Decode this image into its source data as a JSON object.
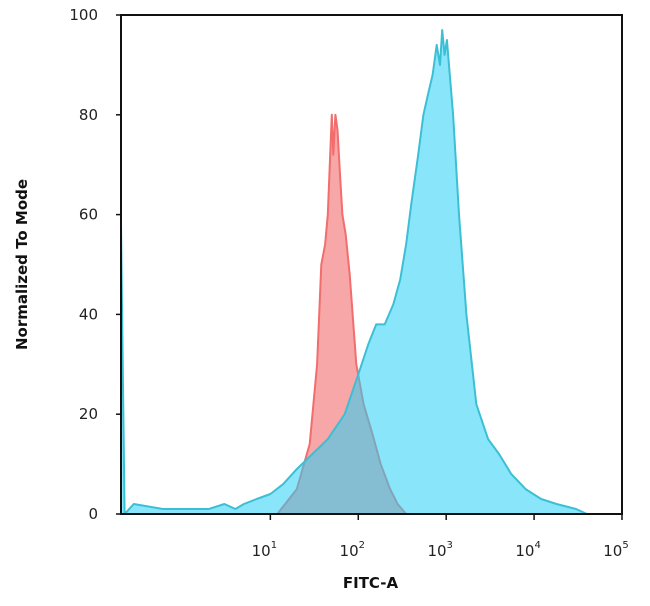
{
  "chart_data": {
    "type": "area",
    "title": "",
    "xlabel": "FITC-A",
    "ylabel": "Normalized To Mode",
    "x_scale": "log",
    "xlim": [
      0.2,
      100000
    ],
    "ylim": [
      0,
      100
    ],
    "x_ticks": [
      {
        "value": 10,
        "base": "10",
        "exp": "1"
      },
      {
        "value": 100,
        "base": "10",
        "exp": "2"
      },
      {
        "value": 1000,
        "base": "10",
        "exp": "3"
      },
      {
        "value": 10000,
        "base": "10",
        "exp": "4"
      },
      {
        "value": 100000,
        "base": "10",
        "exp": "5"
      }
    ],
    "y_ticks": [
      0,
      20,
      40,
      60,
      80,
      100
    ],
    "grid": false,
    "series": [
      {
        "color": "#f26d6d",
        "fill": "rgba(242,120,120,0.65)",
        "x": [
          12,
          20,
          28,
          34,
          38,
          42,
          45,
          48,
          50,
          52,
          55,
          58,
          62,
          66,
          72,
          80,
          95,
          115,
          145,
          180,
          230,
          280,
          350
        ],
        "y": [
          0,
          5,
          14,
          30,
          50,
          54,
          60,
          72,
          80,
          72,
          80,
          77,
          68,
          60,
          56,
          48,
          30,
          22,
          16,
          10,
          5,
          2,
          0
        ]
      },
      {
        "color": "#3cbfd4",
        "fill": "rgba(40,210,245,0.55)",
        "x": [
          0.2,
          0.22,
          0.28,
          0.6,
          1,
          2,
          3,
          4,
          5,
          7,
          10,
          14,
          20,
          30,
          45,
          70,
          100,
          130,
          160,
          200,
          250,
          300,
          350,
          400,
          480,
          550,
          620,
          700,
          780,
          850,
          900,
          960,
          1020,
          1100,
          1200,
          1400,
          1700,
          2200,
          3000,
          4000,
          5500,
          8000,
          12000,
          18000,
          30000,
          40000
        ],
        "y": [
          58,
          0,
          2,
          1,
          1,
          1,
          2,
          1,
          2,
          3,
          4,
          6,
          9,
          12,
          15,
          20,
          28,
          34,
          38,
          38,
          42,
          47,
          54,
          62,
          72,
          80,
          84,
          88,
          94,
          90,
          97,
          92,
          95,
          88,
          80,
          60,
          40,
          22,
          15,
          12,
          8,
          5,
          3,
          2,
          1,
          0
        ]
      }
    ]
  }
}
